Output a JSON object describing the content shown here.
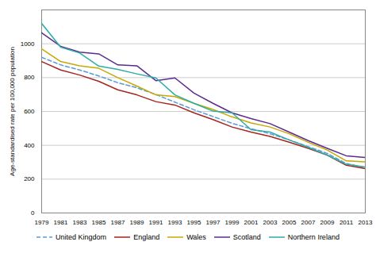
{
  "chart_data": {
    "type": "line",
    "ylabel": "Age-standardised rate per 100,000 population",
    "x": [
      1979,
      1981,
      1983,
      1985,
      1987,
      1989,
      1991,
      1993,
      1995,
      1997,
      1999,
      2001,
      2003,
      2005,
      2007,
      2009,
      2011,
      2013
    ],
    "series": [
      {
        "name": "United Kingdom",
        "color": "#5B9BD5",
        "line_style": "dashed",
        "values": [
          920,
          875,
          845,
          810,
          770,
          740,
          700,
          655,
          610,
          570,
          530,
          498,
          468,
          432,
          392,
          352,
          292,
          268
        ]
      },
      {
        "name": "England",
        "color": "#A52520",
        "line_style": "solid",
        "values": [
          895,
          845,
          815,
          778,
          728,
          698,
          658,
          638,
          592,
          552,
          508,
          478,
          452,
          418,
          382,
          342,
          282,
          262
        ]
      },
      {
        "name": "Wales",
        "color": "#C8A800",
        "line_style": "solid",
        "values": [
          970,
          895,
          870,
          855,
          800,
          750,
          698,
          688,
          648,
          612,
          568,
          532,
          508,
          468,
          418,
          372,
          308,
          302
        ]
      },
      {
        "name": "Scotland",
        "color": "#5B2C8D",
        "line_style": "solid",
        "values": [
          1065,
          985,
          950,
          940,
          875,
          870,
          782,
          798,
          708,
          648,
          592,
          558,
          528,
          478,
          428,
          382,
          338,
          328
        ]
      },
      {
        "name": "Northern Ireland",
        "color": "#2EADA6",
        "line_style": "solid",
        "values": [
          1120,
          980,
          945,
          868,
          848,
          822,
          798,
          698,
          648,
          602,
          592,
          492,
          478,
          432,
          388,
          342,
          288,
          272
        ]
      }
    ],
    "xlim": [
      1979,
      2013
    ],
    "xticks": [
      1979,
      1981,
      1983,
      1985,
      1987,
      1989,
      1991,
      1993,
      1995,
      1997,
      1999,
      2001,
      2003,
      2005,
      2007,
      2009,
      2011,
      2013
    ],
    "ylim": [
      0,
      1200
    ],
    "yticks": [
      0,
      200,
      400,
      600,
      800,
      1000
    ],
    "grid": true,
    "legend": "bottom"
  }
}
